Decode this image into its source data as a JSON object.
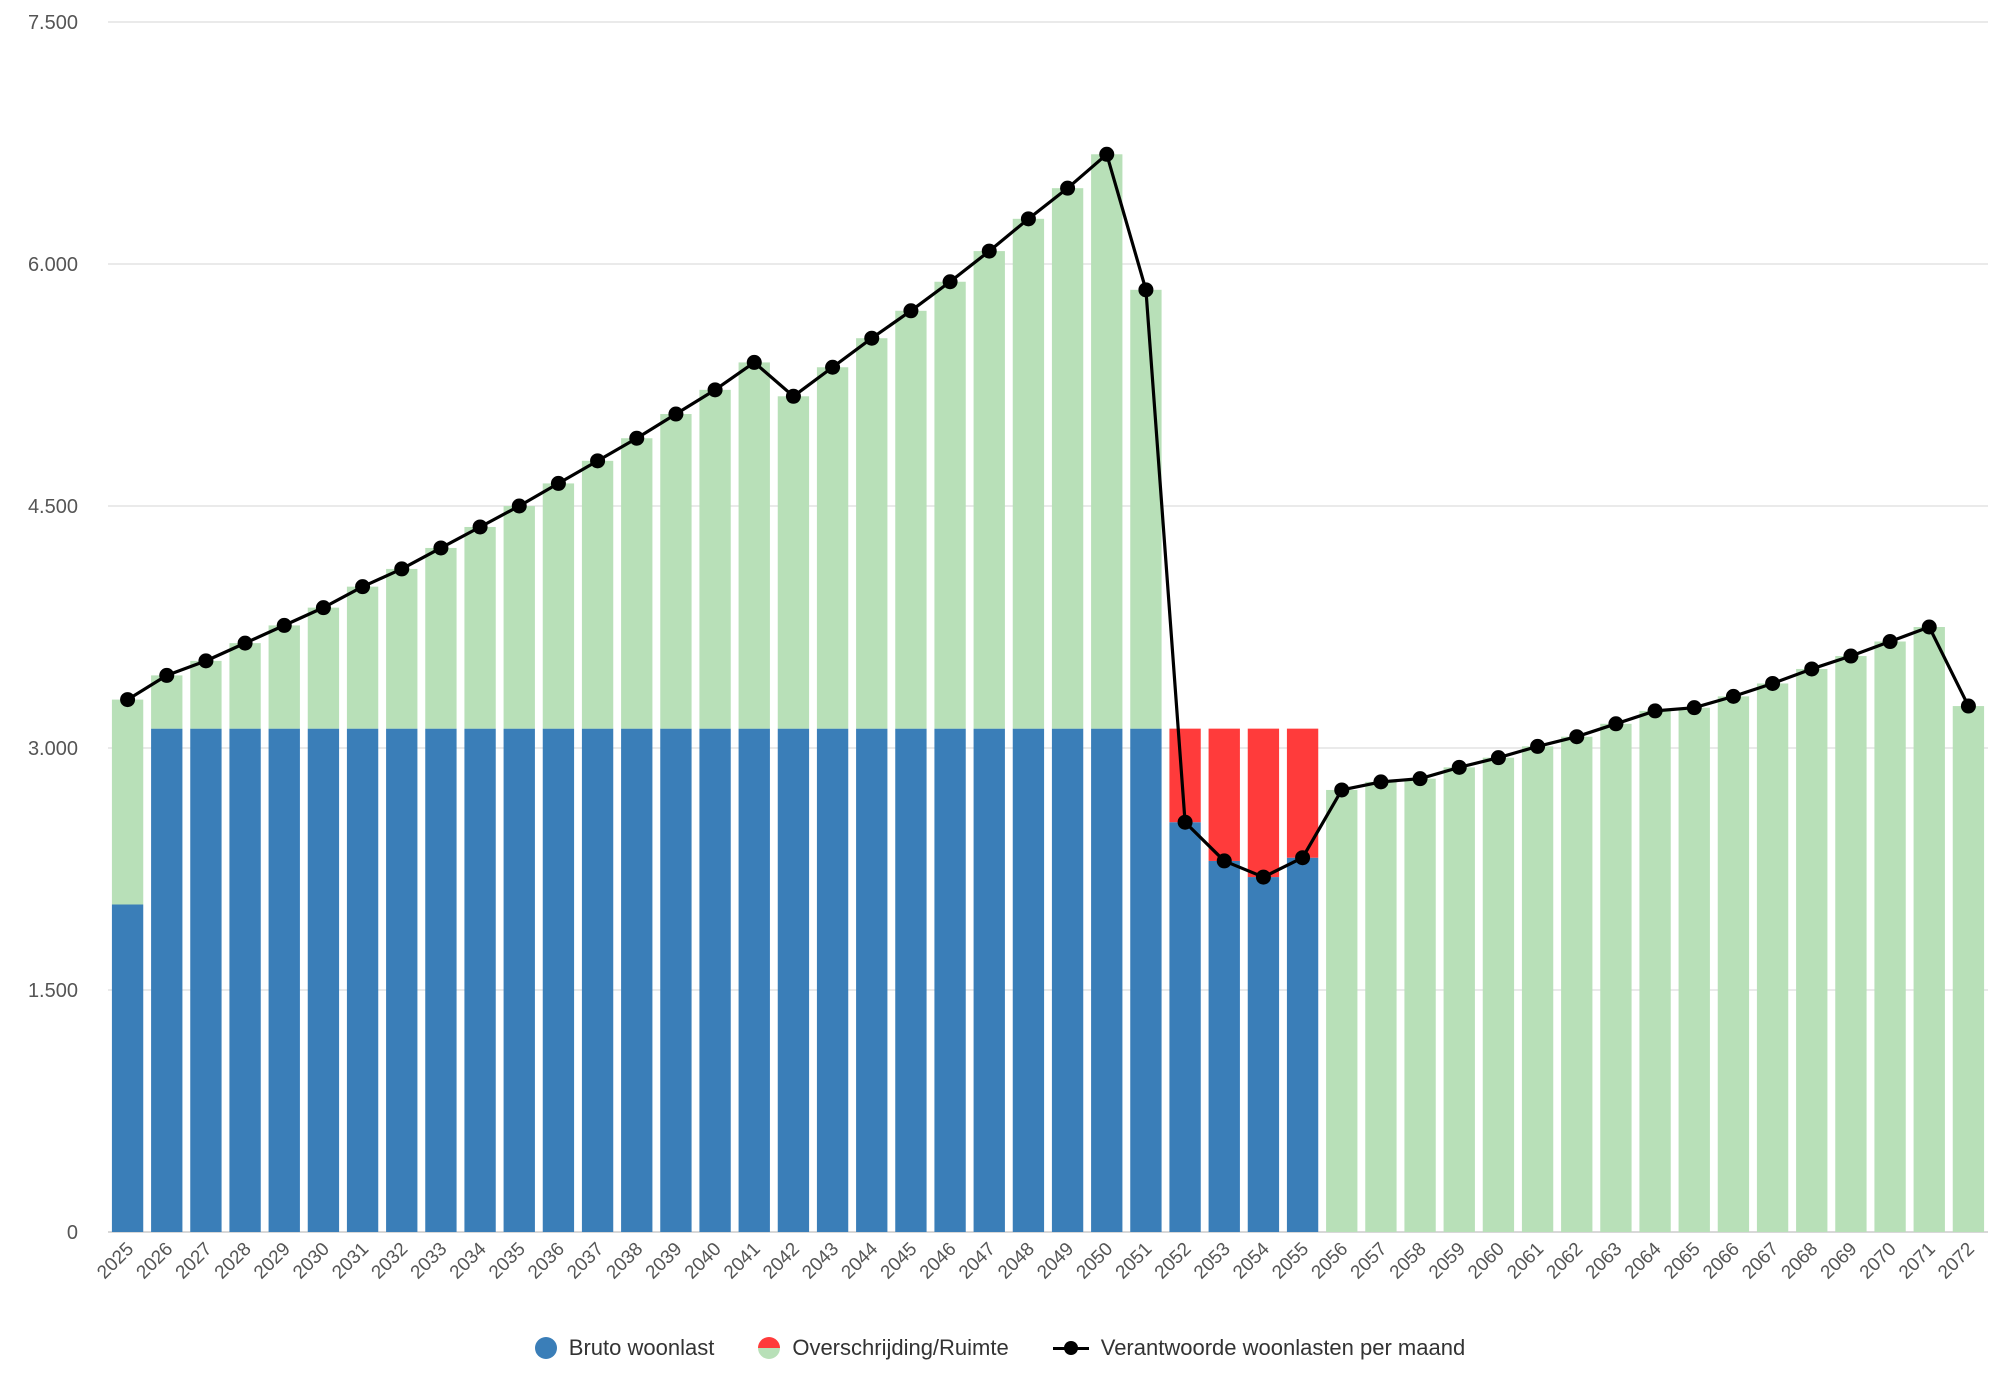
{
  "chart_data": {
    "type": "bar",
    "y_ticks": [
      "0",
      "1.500",
      "3.000",
      "4.500",
      "6.000",
      "7.500"
    ],
    "ylim": [
      0,
      7500
    ],
    "grid": true,
    "legend_placement": "bottom-center",
    "categories": [
      "2025",
      "2026",
      "2027",
      "2028",
      "2029",
      "2030",
      "2031",
      "2032",
      "2033",
      "2034",
      "2035",
      "2036",
      "2037",
      "2038",
      "2039",
      "2040",
      "2041",
      "2042",
      "2043",
      "2044",
      "2045",
      "2046",
      "2047",
      "2048",
      "2049",
      "2050",
      "2051",
      "2052",
      "2053",
      "2054",
      "2055",
      "2056",
      "2057",
      "2058",
      "2059",
      "2060",
      "2061",
      "2062",
      "2063",
      "2064",
      "2065",
      "2066",
      "2067",
      "2068",
      "2069",
      "2070",
      "2071",
      "2072"
    ],
    "series": [
      {
        "name": "Bruto woonlast",
        "kind": "bar-base",
        "color": "#3a7eb8",
        "values": [
          2030,
          3120,
          3120,
          3120,
          3120,
          3120,
          3120,
          3120,
          3120,
          3120,
          3120,
          3120,
          3120,
          3120,
          3120,
          3120,
          3120,
          3120,
          3120,
          3120,
          3120,
          3120,
          3120,
          3120,
          3120,
          3120,
          3120,
          2540,
          2300,
          2200,
          2320,
          0,
          0,
          0,
          0,
          0,
          0,
          0,
          0,
          0,
          0,
          0,
          0,
          0,
          0,
          0,
          0,
          0
        ]
      },
      {
        "name": "Overschrijding/Ruimte",
        "kind": "bar-top",
        "color_over": "#ff3b3b",
        "color_space": "#b8e0b8",
        "top_values": [
          3300,
          3450,
          3540,
          3650,
          3760,
          3870,
          4000,
          4110,
          4240,
          4370,
          4500,
          4640,
          4780,
          4920,
          5070,
          5220,
          5390,
          5180,
          5360,
          5540,
          5710,
          5890,
          6080,
          6280,
          6470,
          6680,
          5840,
          3120,
          3120,
          3120,
          3120,
          2740,
          2790,
          2810,
          2880,
          2940,
          3010,
          3070,
          3150,
          3230,
          3250,
          3320,
          3400,
          3490,
          3570,
          3660,
          3750,
          3260
        ]
      },
      {
        "name": "Verantwoorde woonlasten per maand",
        "kind": "line",
        "color": "#000000",
        "values": [
          3300,
          3450,
          3540,
          3650,
          3760,
          3870,
          4000,
          4110,
          4240,
          4370,
          4500,
          4640,
          4780,
          4920,
          5070,
          5220,
          5390,
          5180,
          5360,
          5540,
          5710,
          5890,
          6080,
          6280,
          6470,
          6680,
          5840,
          2540,
          2300,
          2200,
          2320,
          2740,
          2790,
          2810,
          2880,
          2940,
          3010,
          3070,
          3150,
          3230,
          3250,
          3320,
          3400,
          3490,
          3570,
          3660,
          3750,
          3260
        ]
      }
    ]
  },
  "legend": {
    "bruto": "Bruto woonlast",
    "overschrijding": "Overschrijding/Ruimte",
    "verantwoord": "Verantwoorde woonlasten per maand"
  }
}
